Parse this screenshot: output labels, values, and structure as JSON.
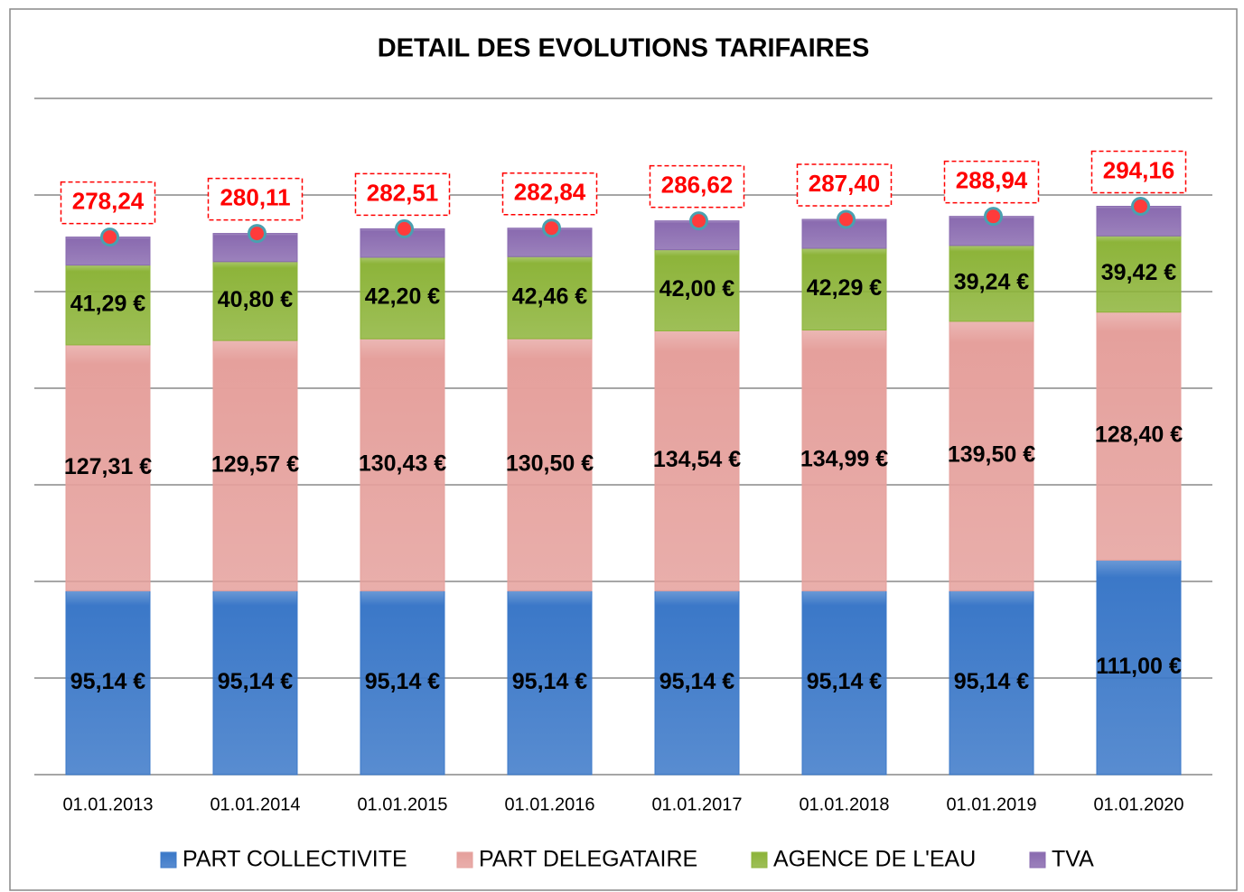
{
  "chart_data": {
    "type": "bar",
    "stacked": true,
    "title": "DETAIL DES EVOLUTIONS TARIFAIRES",
    "categories": [
      "01.01.2013",
      "01.01.2014",
      "01.01.2015",
      "01.01.2016",
      "01.01.2017",
      "01.01.2018",
      "01.01.2019",
      "01.01.2020"
    ],
    "series": [
      {
        "name": "PART COLLECTIVITE",
        "color": "#3b78c8",
        "values": [
          95.14,
          95.14,
          95.14,
          95.14,
          95.14,
          95.14,
          95.14,
          111.0
        ],
        "value_labels": [
          "95,14 €",
          "95,14 €",
          "95,14 €",
          "95,14 €",
          "95,14 €",
          "95,14 €",
          "95,14 €",
          "111,00 €"
        ]
      },
      {
        "name": "PART DELEGATAIRE",
        "color": "#e5a09c",
        "values": [
          127.31,
          129.57,
          130.43,
          130.5,
          134.54,
          134.99,
          139.5,
          128.4
        ],
        "value_labels": [
          "127,31 €",
          "129,57 €",
          "130,43 €",
          "130,50 €",
          "134,54 €",
          "134,99 €",
          "139,50 €",
          "128,40 €"
        ]
      },
      {
        "name": "AGENCE DE L'EAU",
        "color": "#8db43a",
        "values": [
          41.29,
          40.8,
          42.2,
          42.46,
          42.0,
          42.29,
          39.24,
          39.42
        ],
        "value_labels": [
          "41,29 €",
          "40,80 €",
          "42,20 €",
          "42,46 €",
          "42,00 €",
          "42,29 €",
          "39,24 €",
          "39,42 €"
        ]
      },
      {
        "name": "TVA",
        "color": "#8a6bb0",
        "values": [
          14.5,
          14.6,
          14.74,
          14.74,
          14.94,
          14.98,
          15.06,
          15.34
        ]
      }
    ],
    "totals": {
      "color": "#ff3b3b",
      "values": [
        278.24,
        280.11,
        282.51,
        282.84,
        286.62,
        287.4,
        288.94,
        294.16
      ],
      "value_labels": [
        "278,24",
        "280,11",
        "282,51",
        "282,84",
        "286,62",
        "287,40",
        "288,94",
        "294,16"
      ]
    },
    "ylim": [
      0,
      350
    ],
    "yticks": [
      0,
      50,
      100,
      150,
      200,
      250,
      300,
      350
    ],
    "grid": true,
    "legend": "bottom"
  }
}
